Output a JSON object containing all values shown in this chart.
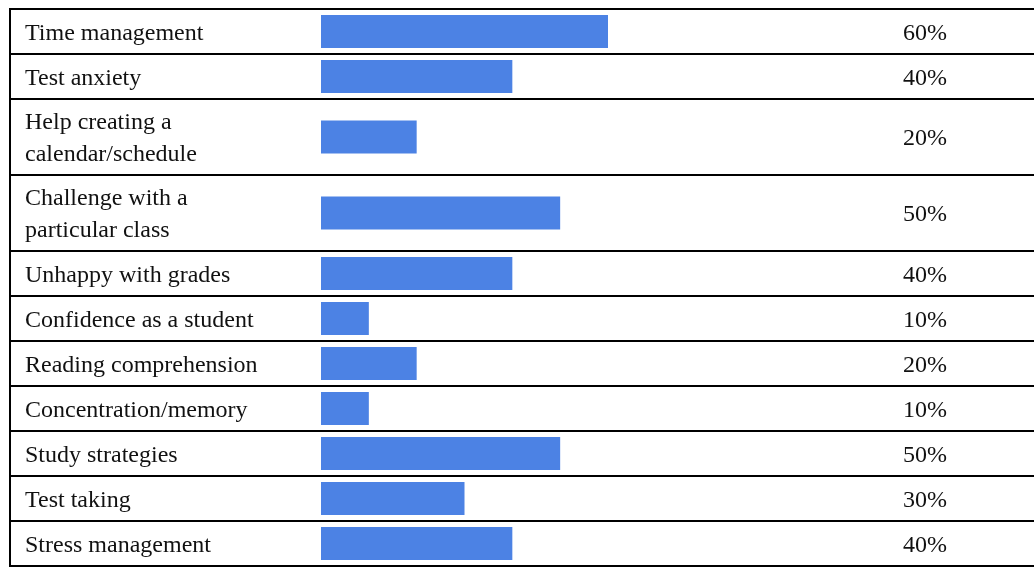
{
  "chart_data": {
    "type": "bar",
    "orientation": "horizontal",
    "categories": [
      "Time management",
      "Test anxiety",
      "Help creating a calendar/schedule",
      "Challenge with a particular class",
      "Unhappy with grades",
      "Confidence as a student",
      "Reading comprehension",
      "Concentration/memory",
      "Study strategies",
      "Test taking",
      "Stress management"
    ],
    "values": [
      60,
      40,
      20,
      50,
      40,
      10,
      20,
      10,
      50,
      30,
      40
    ],
    "value_labels": [
      "60%",
      "40%",
      "20%",
      "50%",
      "40%",
      "10%",
      "20%",
      "10%",
      "50%",
      "30%",
      "40%"
    ],
    "color": "#4c82e4"
  }
}
